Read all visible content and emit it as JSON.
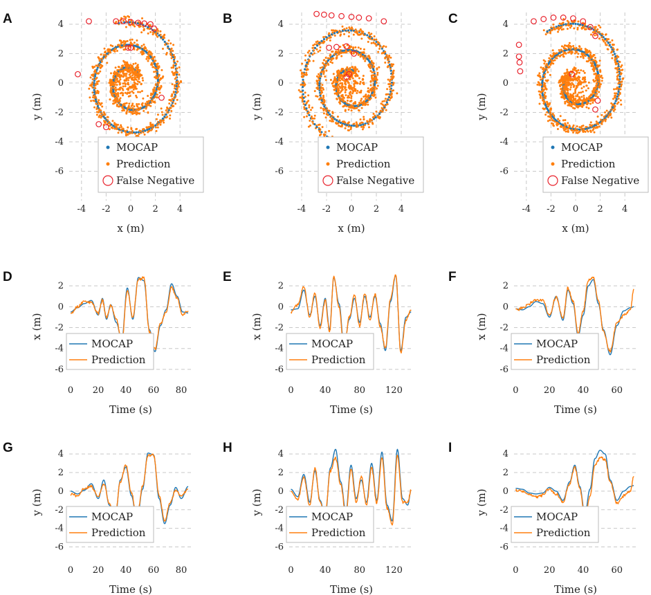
{
  "colors": {
    "mocap": "#1f77b4",
    "prediction": "#ff7f0e",
    "false_negative": "#e8202a"
  },
  "chart_data": [
    {
      "panel": "A",
      "type": "scatter",
      "xlabel": "x (m)",
      "ylabel": "y (m)",
      "xlim": [
        -5,
        5
      ],
      "ylim": [
        -8,
        4.8
      ],
      "xticks": [
        -4,
        -2,
        0,
        2,
        4
      ],
      "yticks": [
        -6,
        -4,
        -2,
        0,
        2,
        4
      ],
      "legend": [
        "MOCAP",
        "Prediction",
        "False Negative"
      ],
      "spiral": {
        "center": [
          0,
          0
        ],
        "r0": 0.8,
        "r1": 4.2,
        "turns": 2.2,
        "phase": 0.6
      },
      "false_negative_points": [
        [
          -3.4,
          4.2
        ],
        [
          -1.2,
          4.2
        ],
        [
          -0.6,
          4.2
        ],
        [
          0,
          4.15
        ],
        [
          0.6,
          4.1
        ],
        [
          1.1,
          4.05
        ],
        [
          1.6,
          4.0
        ],
        [
          1.9,
          3.7
        ],
        [
          0,
          2.4
        ],
        [
          -0.2,
          2.4
        ],
        [
          2.5,
          -1.0
        ],
        [
          -4.3,
          0.6
        ],
        [
          -2.6,
          -2.8
        ],
        [
          -2.0,
          -3.0
        ]
      ]
    },
    {
      "panel": "B",
      "type": "scatter",
      "xlabel": "x (m)",
      "ylabel": "y (m)",
      "xlim": [
        -5,
        5
      ],
      "ylim": [
        -8,
        4.8
      ],
      "xticks": [
        -4,
        -2,
        0,
        2,
        4
      ],
      "yticks": [
        -6,
        -4,
        -2,
        0,
        2,
        4
      ],
      "legend": [
        "MOCAP",
        "Prediction",
        "False Negative"
      ],
      "spiral": {
        "center": [
          0,
          0
        ],
        "r0": 0.8,
        "r1": 4.3,
        "turns": 2.6,
        "phase": 1.2
      },
      "false_negative_points": [
        [
          -2.8,
          4.7
        ],
        [
          -2.2,
          4.65
        ],
        [
          -1.6,
          4.6
        ],
        [
          -0.8,
          4.55
        ],
        [
          0,
          4.5
        ],
        [
          0.6,
          4.45
        ],
        [
          1.4,
          4.4
        ],
        [
          2.6,
          4.2
        ],
        [
          -1.8,
          2.4
        ],
        [
          -1.2,
          2.45
        ],
        [
          -0.4,
          2.5
        ],
        [
          0.2,
          2.0
        ],
        [
          -0.4,
          0.4
        ],
        [
          -0.2,
          0.6
        ]
      ]
    },
    {
      "panel": "C",
      "type": "scatter",
      "xlabel": "x (m)",
      "ylabel": "y (m)",
      "xlim": [
        -5,
        5
      ],
      "ylim": [
        -8,
        4.8
      ],
      "xticks": [
        -4,
        -2,
        0,
        2,
        4
      ],
      "yticks": [
        -6,
        -4,
        -2,
        0,
        2,
        4
      ],
      "legend": [
        "MOCAP",
        "Prediction",
        "False Negative"
      ],
      "spiral": {
        "center": [
          0,
          0
        ],
        "r0": 0.7,
        "r1": 4.2,
        "turns": 2.0,
        "phase": 2.2
      },
      "false_negative_points": [
        [
          -3.4,
          4.2
        ],
        [
          -2.6,
          4.35
        ],
        [
          -1.8,
          4.45
        ],
        [
          -1,
          4.45
        ],
        [
          -0.2,
          4.4
        ],
        [
          0.6,
          4.2
        ],
        [
          1.2,
          3.8
        ],
        [
          1.6,
          3.2
        ],
        [
          -4.6,
          2.6
        ],
        [
          -4.6,
          1.8
        ],
        [
          -4.55,
          1.4
        ],
        [
          -4.5,
          0.8
        ],
        [
          1.8,
          -1.2
        ],
        [
          1.6,
          -1.8
        ],
        [
          -0.3,
          0.6
        ]
      ]
    },
    {
      "panel": "D",
      "type": "line",
      "xlabel": "Time (s)",
      "ylabel": "x (m)",
      "xlim": [
        -1,
        88
      ],
      "ylim": [
        -7.2,
        3.4
      ],
      "xticks": [
        0,
        20,
        40,
        60,
        80
      ],
      "yticks": [
        -6,
        -4,
        -2,
        0,
        2
      ],
      "legend": [
        "MOCAP",
        "Prediction"
      ],
      "series": [
        {
          "name": "MOCAP",
          "x": [
            0,
            5,
            10,
            15,
            20,
            23,
            26,
            29,
            33,
            37,
            41,
            45,
            49,
            53,
            57,
            61,
            65,
            69,
            73,
            77,
            81,
            85
          ],
          "y": [
            -0.5,
            -0.1,
            0.3,
            0.6,
            -0.8,
            0.8,
            -1.2,
            0.2,
            -1.5,
            -3.2,
            1.8,
            -1.2,
            2.8,
            2.5,
            -2.2,
            -4.3,
            -1.8,
            -0.3,
            2.2,
            1.0,
            -0.5,
            -0.6
          ]
        },
        {
          "name": "Prediction",
          "x": [
            0,
            5,
            10,
            15,
            20,
            23,
            26,
            29,
            33,
            37,
            41,
            45,
            49,
            53,
            57,
            61,
            65,
            69,
            73,
            77,
            81,
            85
          ],
          "y": [
            -0.7,
            0.0,
            0.5,
            0.4,
            -0.6,
            0.6,
            -1.0,
            0.1,
            -1.2,
            -3.4,
            1.5,
            -1.0,
            2.6,
            2.8,
            -2.4,
            -4.1,
            -1.6,
            -0.5,
            1.9,
            0.8,
            -0.8,
            -0.4
          ]
        }
      ]
    },
    {
      "panel": "E",
      "type": "line",
      "xlabel": "Time (s)",
      "ylabel": "x (m)",
      "xlim": [
        -2,
        143
      ],
      "ylim": [
        -7.2,
        3.4
      ],
      "xticks": [
        0,
        40,
        80,
        120
      ],
      "yticks": [
        -6,
        -4,
        -2,
        0,
        2
      ],
      "legend": [
        "MOCAP",
        "Prediction"
      ],
      "series": [
        {
          "name": "MOCAP",
          "x": [
            0,
            8,
            15,
            22,
            28,
            34,
            40,
            45,
            50,
            56,
            62,
            68,
            74,
            80,
            86,
            92,
            98,
            104,
            110,
            116,
            122,
            128,
            134,
            140
          ],
          "y": [
            -0.3,
            -0.2,
            1.6,
            -0.8,
            1.0,
            -1.8,
            0.8,
            -2.2,
            2.8,
            0.3,
            -3.8,
            -1.2,
            0.8,
            -1.5,
            1.0,
            -1.0,
            1.0,
            -1.6,
            -4.2,
            0.5,
            3.0,
            -4.2,
            -1.0,
            -0.5
          ]
        },
        {
          "name": "Prediction",
          "x": [
            0,
            8,
            15,
            22,
            28,
            34,
            40,
            45,
            50,
            56,
            62,
            68,
            74,
            80,
            86,
            92,
            98,
            104,
            110,
            116,
            122,
            128,
            134,
            140
          ],
          "y": [
            -0.5,
            0.2,
            1.9,
            -1.0,
            1.3,
            -2.0,
            0.6,
            -2.4,
            2.9,
            0.0,
            -4.2,
            -1.0,
            1.1,
            -1.8,
            1.3,
            -1.3,
            1.2,
            -1.9,
            -4.0,
            0.8,
            3.1,
            -4.4,
            -1.3,
            -0.3
          ]
        }
      ]
    },
    {
      "panel": "F",
      "type": "line",
      "xlabel": "Time (s)",
      "ylabel": "x (m)",
      "xlim": [
        -1,
        72
      ],
      "ylim": [
        -7.2,
        3.4
      ],
      "xticks": [
        0,
        20,
        40,
        60
      ],
      "yticks": [
        -6,
        -4,
        -2,
        0,
        2
      ],
      "legend": [
        "MOCAP",
        "Prediction"
      ],
      "series": [
        {
          "name": "MOCAP",
          "x": [
            0,
            4,
            8,
            12,
            16,
            20,
            24,
            28,
            31,
            34,
            37,
            40,
            43,
            46,
            49,
            52,
            56,
            60,
            64,
            68,
            70
          ],
          "y": [
            -0.2,
            -0.3,
            0.0,
            0.5,
            0.3,
            -1.0,
            1.0,
            -1.3,
            1.6,
            0.3,
            -2.8,
            -0.8,
            2.0,
            2.6,
            0.3,
            -2.2,
            -4.6,
            -1.8,
            -0.4,
            -0.1,
            0.0
          ]
        },
        {
          "name": "Prediction",
          "x": [
            0,
            4,
            8,
            12,
            16,
            20,
            24,
            28,
            31,
            34,
            37,
            40,
            43,
            46,
            49,
            52,
            56,
            60,
            64,
            68,
            70
          ],
          "y": [
            -0.3,
            -0.1,
            0.3,
            0.7,
            0.6,
            -0.8,
            0.9,
            -1.1,
            1.8,
            0.5,
            -2.6,
            -0.4,
            2.5,
            2.8,
            0.6,
            -2.4,
            -4.3,
            -1.5,
            -0.8,
            -0.3,
            1.7
          ]
        }
      ]
    },
    {
      "panel": "G",
      "type": "line",
      "xlabel": "Time (s)",
      "ylabel": "y (m)",
      "xlim": [
        -1,
        88
      ],
      "ylim": [
        -7.6,
        5.2
      ],
      "xticks": [
        0,
        20,
        40,
        60,
        80
      ],
      "yticks": [
        -6,
        -4,
        -2,
        0,
        2,
        4
      ],
      "legend": [
        "MOCAP",
        "Prediction"
      ],
      "series": [
        {
          "name": "MOCAP",
          "x": [
            0,
            5,
            10,
            15,
            20,
            24,
            28,
            32,
            36,
            40,
            44,
            48,
            52,
            56,
            60,
            64,
            68,
            72,
            76,
            80,
            85
          ],
          "y": [
            0.0,
            -0.3,
            0.1,
            0.8,
            -0.8,
            1.2,
            -1.5,
            -3.4,
            1.2,
            2.6,
            -0.5,
            -3.2,
            0.2,
            4.1,
            3.9,
            -0.8,
            -3.5,
            -1.5,
            0.4,
            -0.8,
            0.5
          ]
        },
        {
          "name": "Prediction",
          "x": [
            0,
            5,
            10,
            15,
            20,
            24,
            28,
            32,
            36,
            40,
            44,
            48,
            52,
            56,
            60,
            64,
            68,
            72,
            76,
            80,
            85
          ],
          "y": [
            -0.3,
            -0.5,
            0.3,
            0.5,
            -0.6,
            0.8,
            -1.3,
            -3.0,
            1.0,
            2.8,
            -0.2,
            -3.0,
            0.5,
            3.8,
            3.9,
            -0.5,
            -3.2,
            -1.2,
            0.1,
            -0.5,
            0.2
          ]
        }
      ]
    },
    {
      "panel": "H",
      "type": "line",
      "xlabel": "Time (s)",
      "ylabel": "y (m)",
      "xlim": [
        -2,
        143
      ],
      "ylim": [
        -7.6,
        5.2
      ],
      "xticks": [
        0,
        40,
        80,
        120
      ],
      "yticks": [
        -6,
        -4,
        -2,
        0,
        2,
        4
      ],
      "legend": [
        "MOCAP",
        "Prediction"
      ],
      "series": [
        {
          "name": "MOCAP",
          "x": [
            0,
            8,
            15,
            22,
            28,
            34,
            40,
            46,
            52,
            58,
            64,
            70,
            76,
            82,
            88,
            94,
            100,
            106,
            112,
            118,
            124,
            130,
            136,
            140
          ],
          "y": [
            0.2,
            -0.6,
            1.8,
            -1.2,
            2.2,
            -1.0,
            -2.8,
            2.5,
            4.5,
            1.0,
            -2.2,
            2.8,
            -0.8,
            1.2,
            -1.2,
            3.0,
            -1.0,
            4.2,
            -1.5,
            -3.2,
            4.5,
            -0.8,
            -1.5,
            0.1
          ]
        },
        {
          "name": "Prediction",
          "x": [
            0,
            8,
            15,
            22,
            28,
            34,
            40,
            46,
            52,
            58,
            64,
            70,
            76,
            82,
            88,
            94,
            100,
            106,
            112,
            118,
            124,
            130,
            136,
            140
          ],
          "y": [
            -0.1,
            -0.9,
            1.5,
            -1.5,
            2.5,
            -1.2,
            -2.5,
            2.2,
            3.6,
            0.7,
            -2.6,
            2.4,
            -1.2,
            1.6,
            -1.5,
            2.5,
            -1.3,
            3.6,
            -1.8,
            -3.6,
            3.8,
            -1.2,
            -1.2,
            0.1
          ]
        }
      ]
    },
    {
      "panel": "I",
      "type": "line",
      "xlabel": "Time (s)",
      "ylabel": "y (m)",
      "xlim": [
        -1,
        72
      ],
      "ylim": [
        -7.6,
        5.2
      ],
      "xticks": [
        0,
        20,
        40,
        60
      ],
      "yticks": [
        -6,
        -4,
        -2,
        0,
        2,
        4
      ],
      "legend": [
        "MOCAP",
        "Prediction"
      ],
      "series": [
        {
          "name": "MOCAP",
          "x": [
            0,
            4,
            8,
            12,
            16,
            20,
            24,
            28,
            32,
            35,
            38,
            41,
            44,
            47,
            50,
            53,
            56,
            60,
            64,
            68,
            70
          ],
          "y": [
            0.3,
            0.2,
            -0.2,
            -0.3,
            -0.2,
            0.4,
            0.0,
            -1.0,
            1.0,
            2.8,
            0.5,
            -2.5,
            0.2,
            3.5,
            4.4,
            4.0,
            1.2,
            -1.0,
            0.0,
            0.5,
            0.6
          ]
        },
        {
          "name": "Prediction",
          "x": [
            0,
            4,
            8,
            12,
            16,
            20,
            24,
            28,
            32,
            35,
            38,
            41,
            44,
            47,
            50,
            53,
            56,
            60,
            64,
            68,
            70
          ],
          "y": [
            0.1,
            0.0,
            -0.4,
            -0.6,
            -0.4,
            0.2,
            -0.3,
            -1.2,
            0.8,
            2.6,
            0.3,
            -3.0,
            -0.5,
            2.8,
            3.6,
            3.4,
            1.0,
            -1.3,
            -0.5,
            0.0,
            1.6
          ]
        }
      ]
    }
  ]
}
